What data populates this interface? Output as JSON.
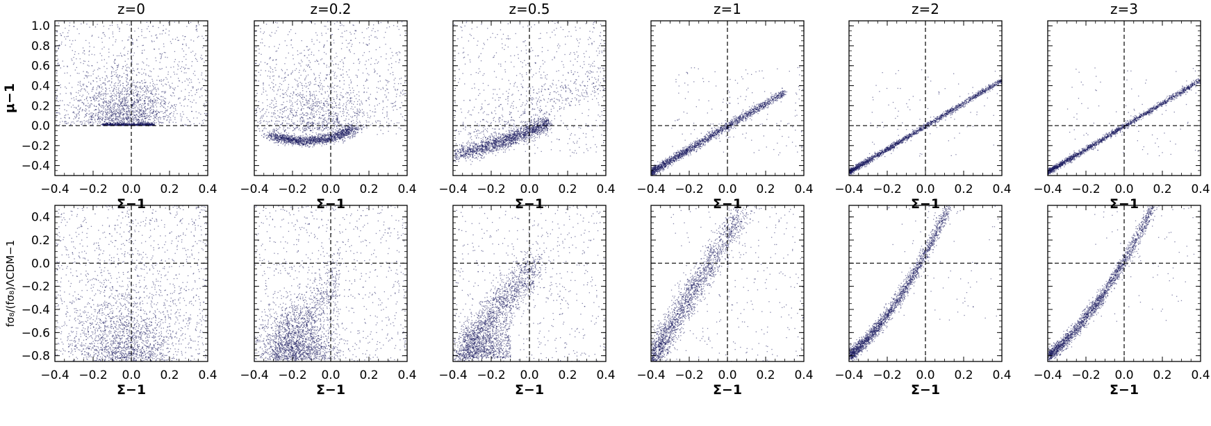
{
  "figure": {
    "colors": {
      "points": "#1a1a5e",
      "axes": "#000000",
      "reference": "#000000"
    }
  },
  "chart_data": [
    {
      "type": "scatter",
      "row": 0,
      "col": 0,
      "title": "z=0",
      "xlabel": "Σ−1",
      "ylabel": "μ−1",
      "xlim": [
        -0.4,
        0.4
      ],
      "ylim": [
        -0.5,
        1.05
      ],
      "xticks": [
        "−0.4",
        "−0.2",
        "0.0",
        "0.2",
        "0.4"
      ],
      "yticks": [
        "−0.4",
        "−0.2",
        "0.0",
        "0.2",
        "0.4",
        "0.6",
        "0.8",
        "1.0"
      ],
      "reference_lines": {
        "x": 0,
        "y": 0
      },
      "grid": false,
      "trend": "dense ridge along μ−1≈0 near Σ−1≈0 with a broad cloud extending upward to 1.0"
    },
    {
      "type": "scatter",
      "row": 0,
      "col": 1,
      "title": "z=0.2",
      "xlabel": "Σ−1",
      "ylabel": "",
      "xlim": [
        -0.4,
        0.4
      ],
      "ylim": [
        -0.5,
        1.05
      ],
      "xticks": [
        "−0.4",
        "−0.2",
        "0.0",
        "0.2",
        "0.4"
      ],
      "yticks": [],
      "reference_lines": {
        "x": 0,
        "y": 0
      },
      "grid": false,
      "trend": "dense arc bottoming near (−0.15, −0.15) rising to (0.1, 0.05)"
    },
    {
      "type": "scatter",
      "row": 0,
      "col": 2,
      "title": "z=0.5",
      "xlabel": "Σ−1",
      "ylabel": "",
      "xlim": [
        -0.4,
        0.4
      ],
      "ylim": [
        -0.5,
        1.05
      ],
      "xticks": [
        "−0.4",
        "−0.2",
        "0.0",
        "0.2",
        "0.4"
      ],
      "yticks": [],
      "reference_lines": {
        "x": 0,
        "y": 0
      },
      "grid": false,
      "trend": "dense band from (−0.4, −0.4) to (0.1, 0.05)"
    },
    {
      "type": "scatter",
      "row": 0,
      "col": 3,
      "title": "z=1",
      "xlabel": "Σ−1",
      "ylabel": "",
      "xlim": [
        -0.4,
        0.4
      ],
      "ylim": [
        -0.5,
        1.05
      ],
      "xticks": [
        "−0.4",
        "−0.2",
        "0.0",
        "0.2",
        "0.4"
      ],
      "yticks": [],
      "reference_lines": {
        "x": 0,
        "y": 0
      },
      "grid": false,
      "trend": "tight linear band from (−0.4, −0.45) to (0.3, 0.35)"
    },
    {
      "type": "scatter",
      "row": 0,
      "col": 4,
      "title": "z=2",
      "xlabel": "Σ−1",
      "ylabel": "",
      "xlim": [
        -0.4,
        0.4
      ],
      "ylim": [
        -0.5,
        1.05
      ],
      "xticks": [
        "−0.4",
        "−0.2",
        "0.0",
        "0.2",
        "0.4"
      ],
      "yticks": [],
      "reference_lines": {
        "x": 0,
        "y": 0
      },
      "grid": false,
      "trend": "tight linear band from (−0.4, −0.47) to (0.4, 0.45)"
    },
    {
      "type": "scatter",
      "row": 0,
      "col": 5,
      "title": "z=3",
      "xlabel": "Σ−1",
      "ylabel": "",
      "xlim": [
        -0.4,
        0.4
      ],
      "ylim": [
        -0.5,
        1.05
      ],
      "xticks": [
        "−0.4",
        "−0.2",
        "0.0",
        "0.2",
        "0.4"
      ],
      "yticks": [],
      "reference_lines": {
        "x": 0,
        "y": 0
      },
      "grid": false,
      "trend": "tight linear band from (−0.4, −0.47) to (0.4, 0.47)"
    },
    {
      "type": "scatter",
      "row": 1,
      "col": 0,
      "title": "",
      "xlabel": "Σ−1",
      "ylabel": "fσ₈/(fσ₈)ΛCDM−1",
      "xlim": [
        -0.4,
        0.4
      ],
      "ylim": [
        -0.85,
        0.5
      ],
      "xticks": [
        "−0.4",
        "−0.2",
        "0.0",
        "0.2",
        "0.4"
      ],
      "yticks": [
        "−0.8",
        "−0.6",
        "−0.4",
        "−0.2",
        "0.0",
        "0.2",
        "0.4"
      ],
      "reference_lines": {
        "x": 0,
        "y": 0
      },
      "grid": false,
      "trend": "diffuse cloud concentrated near the bottom around Σ−1≈0"
    },
    {
      "type": "scatter",
      "row": 1,
      "col": 1,
      "title": "",
      "xlabel": "Σ−1",
      "ylabel": "",
      "xlim": [
        -0.4,
        0.4
      ],
      "ylim": [
        -0.85,
        0.5
      ],
      "xticks": [
        "−0.4",
        "−0.2",
        "0.0",
        "0.2",
        "0.4"
      ],
      "yticks": [],
      "reference_lines": {
        "x": 0,
        "y": 0
      },
      "grid": false,
      "trend": "diffuse cloud concentrated near (−0.2, −0.75)"
    },
    {
      "type": "scatter",
      "row": 1,
      "col": 2,
      "title": "",
      "xlabel": "Σ−1",
      "ylabel": "",
      "xlim": [
        -0.4,
        0.4
      ],
      "ylim": [
        -0.85,
        0.5
      ],
      "xticks": [
        "−0.4",
        "−0.2",
        "0.0",
        "0.2",
        "0.4"
      ],
      "yticks": [],
      "reference_lines": {
        "x": 0,
        "y": 0
      },
      "grid": false,
      "trend": "broad band rising from (−0.35, −0.8) toward (0.0, 0.0)"
    },
    {
      "type": "scatter",
      "row": 1,
      "col": 3,
      "title": "",
      "xlabel": "Σ−1",
      "ylabel": "",
      "xlim": [
        -0.4,
        0.4
      ],
      "ylim": [
        -0.85,
        0.5
      ],
      "xticks": [
        "−0.4",
        "−0.2",
        "0.0",
        "0.2",
        "0.4"
      ],
      "yticks": [],
      "reference_lines": {
        "x": 0,
        "y": 0
      },
      "grid": false,
      "trend": "band rising from (−0.4, −0.8) to (0.05, 0.45)"
    },
    {
      "type": "scatter",
      "row": 1,
      "col": 4,
      "title": "",
      "xlabel": "Σ−1",
      "ylabel": "",
      "xlim": [
        -0.4,
        0.4
      ],
      "ylim": [
        -0.85,
        0.5
      ],
      "xticks": [
        "−0.4",
        "−0.2",
        "0.0",
        "0.2",
        "0.4"
      ],
      "yticks": [],
      "reference_lines": {
        "x": 0,
        "y": 0
      },
      "grid": false,
      "trend": "narrow curved band from (−0.4, −0.8) through (0.0, 0.0) to (0.1, 0.5)"
    },
    {
      "type": "scatter",
      "row": 1,
      "col": 5,
      "title": "",
      "xlabel": "Σ−1",
      "ylabel": "",
      "xlim": [
        -0.4,
        0.4
      ],
      "ylim": [
        -0.85,
        0.5
      ],
      "xticks": [
        "−0.4",
        "−0.2",
        "0.0",
        "0.2",
        "0.4"
      ],
      "yticks": [],
      "reference_lines": {
        "x": 0,
        "y": 0
      },
      "grid": false,
      "trend": "narrow curved band from (−0.4, −0.78) through (0.0, 0.0) to (0.15, 0.5)"
    }
  ]
}
